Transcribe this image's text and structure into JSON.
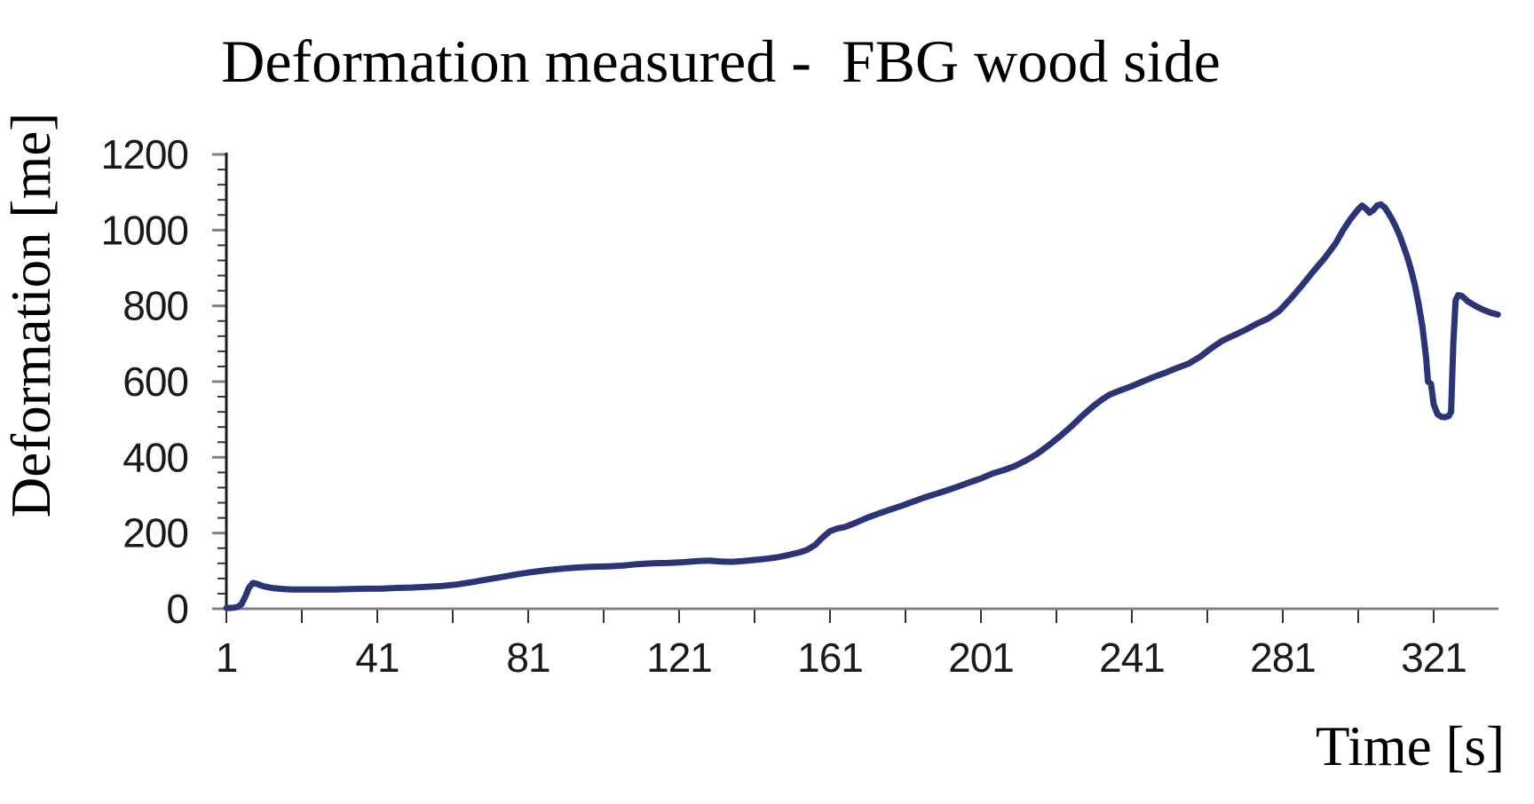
{
  "chart_data": {
    "type": "line",
    "title": "Deformation measured -  FBG wood side",
    "xlabel": "Time [s]",
    "ylabel": "Deformation [me]",
    "xlim": [
      1,
      338
    ],
    "ylim": [
      0,
      1200
    ],
    "x_tick_labels": [
      1,
      41,
      81,
      121,
      161,
      201,
      241,
      281,
      321
    ],
    "x_minor_tick_interval": 20,
    "y_tick_labels": [
      0,
      200,
      400,
      600,
      800,
      1000,
      1200
    ],
    "y_major_interval": 200,
    "y_minor_tick_interval": 40,
    "grid": false,
    "legend_position": "none",
    "series": [
      {
        "name": "FBG wood side deformation",
        "color": "#2b3576",
        "points": [
          [
            1,
            2
          ],
          [
            2,
            2
          ],
          [
            3,
            3
          ],
          [
            4,
            5
          ],
          [
            5,
            12
          ],
          [
            6,
            32
          ],
          [
            7,
            56
          ],
          [
            8,
            68
          ],
          [
            9,
            66
          ],
          [
            10,
            62
          ],
          [
            11,
            59
          ],
          [
            13,
            55
          ],
          [
            15,
            53
          ],
          [
            18,
            51
          ],
          [
            22,
            51
          ],
          [
            26,
            51
          ],
          [
            30,
            51
          ],
          [
            34,
            52
          ],
          [
            38,
            53
          ],
          [
            42,
            53
          ],
          [
            46,
            55
          ],
          [
            50,
            56
          ],
          [
            54,
            58
          ],
          [
            58,
            60
          ],
          [
            62,
            64
          ],
          [
            66,
            70
          ],
          [
            70,
            77
          ],
          [
            74,
            84
          ],
          [
            78,
            91
          ],
          [
            82,
            97
          ],
          [
            86,
            102
          ],
          [
            90,
            106
          ],
          [
            94,
            109
          ],
          [
            98,
            111
          ],
          [
            102,
            112
          ],
          [
            106,
            114
          ],
          [
            110,
            118
          ],
          [
            114,
            120
          ],
          [
            118,
            121
          ],
          [
            122,
            123
          ],
          [
            126,
            126
          ],
          [
            129,
            127
          ],
          [
            132,
            125
          ],
          [
            135,
            124
          ],
          [
            138,
            126
          ],
          [
            141,
            129
          ],
          [
            144,
            132
          ],
          [
            147,
            136
          ],
          [
            150,
            142
          ],
          [
            153,
            149
          ],
          [
            155,
            156
          ],
          [
            157,
            168
          ],
          [
            159,
            188
          ],
          [
            161,
            205
          ],
          [
            163,
            212
          ],
          [
            165,
            216
          ],
          [
            168,
            228
          ],
          [
            171,
            241
          ],
          [
            174,
            252
          ],
          [
            177,
            262
          ],
          [
            180,
            272
          ],
          [
            183,
            283
          ],
          [
            186,
            294
          ],
          [
            189,
            303
          ],
          [
            192,
            313
          ],
          [
            195,
            323
          ],
          [
            198,
            334
          ],
          [
            201,
            344
          ],
          [
            204,
            357
          ],
          [
            207,
            366
          ],
          [
            210,
            377
          ],
          [
            213,
            392
          ],
          [
            216,
            410
          ],
          [
            219,
            432
          ],
          [
            222,
            456
          ],
          [
            225,
            482
          ],
          [
            228,
            511
          ],
          [
            231,
            537
          ],
          [
            233,
            552
          ],
          [
            235,
            565
          ],
          [
            238,
            577
          ],
          [
            241,
            588
          ],
          [
            244,
            601
          ],
          [
            247,
            613
          ],
          [
            250,
            624
          ],
          [
            253,
            636
          ],
          [
            256,
            647
          ],
          [
            259,
            665
          ],
          [
            262,
            688
          ],
          [
            265,
            708
          ],
          [
            268,
            722
          ],
          [
            271,
            736
          ],
          [
            274,
            752
          ],
          [
            277,
            766
          ],
          [
            280,
            786
          ],
          [
            283,
            818
          ],
          [
            286,
            853
          ],
          [
            289,
            890
          ],
          [
            292,
            925
          ],
          [
            295,
            965
          ],
          [
            297,
            1000
          ],
          [
            299,
            1030
          ],
          [
            301,
            1055
          ],
          [
            302,
            1065
          ],
          [
            303,
            1057
          ],
          [
            304,
            1046
          ],
          [
            305,
            1053
          ],
          [
            306,
            1065
          ],
          [
            307,
            1068
          ],
          [
            308,
            1060
          ],
          [
            309,
            1045
          ],
          [
            310,
            1028
          ],
          [
            311,
            1008
          ],
          [
            312,
            985
          ],
          [
            313,
            958
          ],
          [
            314,
            929
          ],
          [
            315,
            895
          ],
          [
            316,
            855
          ],
          [
            317,
            805
          ],
          [
            318,
            745
          ],
          [
            319,
            662
          ],
          [
            319.5,
            600
          ],
          [
            320.3,
            594
          ],
          [
            321,
            540
          ],
          [
            322,
            514
          ],
          [
            323,
            507
          ],
          [
            324,
            506
          ],
          [
            325,
            509
          ],
          [
            325.6,
            520
          ],
          [
            326.2,
            700
          ],
          [
            326.8,
            815
          ],
          [
            327.5,
            828
          ],
          [
            328.5,
            826
          ],
          [
            330,
            812
          ],
          [
            332,
            800
          ],
          [
            334,
            790
          ],
          [
            336,
            782
          ],
          [
            338,
            777
          ]
        ]
      }
    ]
  },
  "colors": {
    "series_line": "#2b3576",
    "x_axis_line": "#808080",
    "y_axis_line": "#1a1a1a",
    "major_tick": "#808080",
    "minor_tick": "#333333",
    "text": "#000000",
    "background": "#ffffff"
  }
}
